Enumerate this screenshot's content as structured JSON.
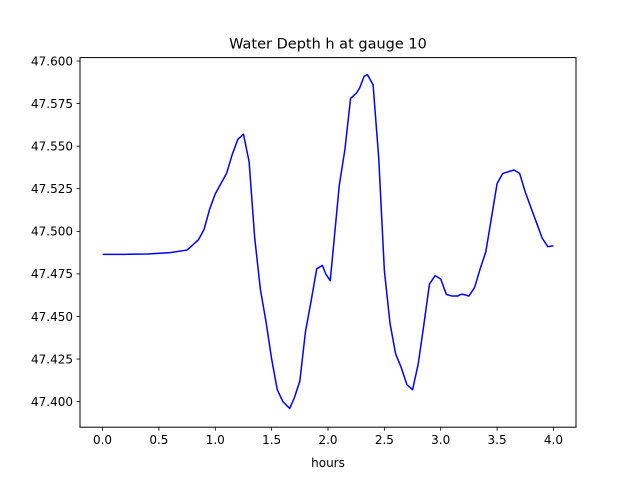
{
  "chart_data": {
    "type": "line",
    "title": "Water Depth h at gauge 10",
    "xlabel": "hours",
    "ylabel": "",
    "xlim": [
      -0.2,
      4.2
    ],
    "ylim": [
      47.385,
      47.602
    ],
    "xticks": [
      0.0,
      0.5,
      1.0,
      1.5,
      2.0,
      2.5,
      3.0,
      3.5,
      4.0
    ],
    "xtick_labels": [
      "0.0",
      "0.5",
      "1.0",
      "1.5",
      "2.0",
      "2.5",
      "3.0",
      "3.5",
      "4.0"
    ],
    "yticks": [
      47.4,
      47.425,
      47.45,
      47.475,
      47.5,
      47.525,
      47.55,
      47.575,
      47.6
    ],
    "ytick_labels": [
      "47.400",
      "47.425",
      "47.450",
      "47.475",
      "47.500",
      "47.525",
      "47.550",
      "47.575",
      "47.600"
    ],
    "grid": false,
    "legend": "none",
    "series": [
      {
        "color": "#0000ff",
        "x": [
          0.0,
          0.2,
          0.4,
          0.6,
          0.75,
          0.85,
          0.9,
          0.95,
          1.0,
          1.05,
          1.1,
          1.15,
          1.2,
          1.25,
          1.3,
          1.35,
          1.4,
          1.45,
          1.5,
          1.55,
          1.6,
          1.66,
          1.7,
          1.75,
          1.8,
          1.85,
          1.9,
          1.95,
          1.98,
          2.02,
          2.05,
          2.1,
          2.15,
          2.2,
          2.25,
          2.28,
          2.32,
          2.35,
          2.4,
          2.45,
          2.5,
          2.55,
          2.6,
          2.65,
          2.7,
          2.75,
          2.8,
          2.85,
          2.9,
          2.95,
          3.0,
          3.05,
          3.1,
          3.15,
          3.18,
          3.2,
          3.25,
          3.3,
          3.35,
          3.4,
          3.45,
          3.5,
          3.55,
          3.6,
          3.65,
          3.7,
          3.75,
          3.8,
          3.85,
          3.9,
          3.95,
          4.0
        ],
        "y": [
          47.4865,
          47.4865,
          47.4867,
          47.4875,
          47.489,
          47.495,
          47.501,
          47.513,
          47.522,
          47.528,
          47.534,
          47.545,
          47.554,
          47.557,
          47.541,
          47.496,
          47.466,
          47.447,
          47.425,
          47.407,
          47.4,
          47.396,
          47.402,
          47.412,
          47.441,
          47.459,
          47.478,
          47.48,
          47.475,
          47.471,
          47.492,
          47.527,
          47.548,
          47.578,
          47.581,
          47.584,
          47.591,
          47.592,
          47.586,
          47.543,
          47.477,
          47.446,
          47.428,
          47.42,
          47.41,
          47.407,
          47.422,
          47.445,
          47.469,
          47.474,
          47.472,
          47.463,
          47.462,
          47.462,
          47.463,
          47.463,
          47.462,
          47.467,
          47.478,
          47.488,
          47.508,
          47.528,
          47.534,
          47.535,
          47.536,
          47.534,
          47.523,
          47.514,
          47.505,
          47.496,
          47.491,
          47.4915
        ]
      }
    ]
  }
}
